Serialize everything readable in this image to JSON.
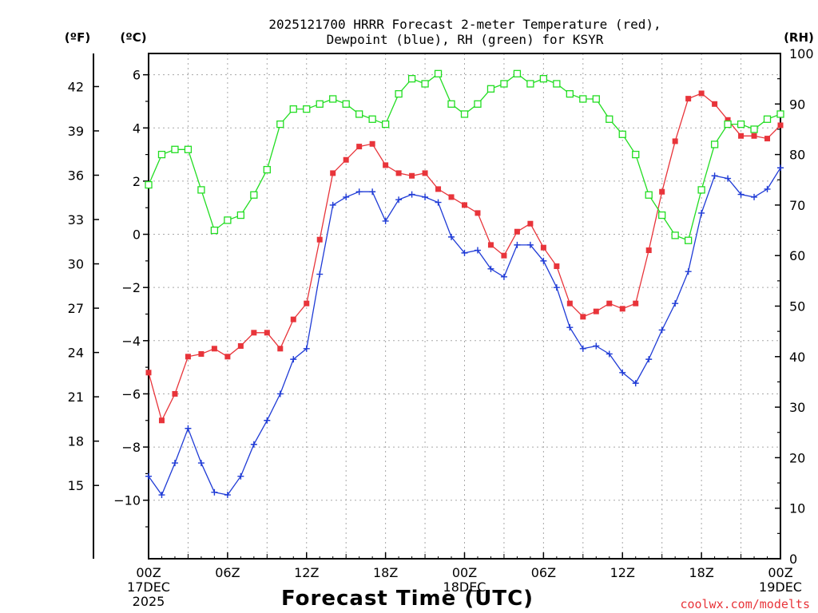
{
  "chart_data": {
    "type": "line",
    "title": [
      "2025121700 HRRR Forecast 2-meter Temperature (red),",
      "Dewpoint (blue), RH (green) for KSYR"
    ],
    "xlabel": "Forecast Time (UTC)",
    "credit": "coolwx.com/modelts",
    "units": {
      "f": "(ºF)",
      "c": "(ºC)",
      "rh": "(RH)"
    },
    "x_ticks": [
      {
        "h": 0,
        "lines": [
          "00Z",
          "17DEC",
          "2025"
        ]
      },
      {
        "h": 6,
        "lines": [
          "06Z"
        ]
      },
      {
        "h": 12,
        "lines": [
          "12Z"
        ]
      },
      {
        "h": 18,
        "lines": [
          "18Z"
        ]
      },
      {
        "h": 24,
        "lines": [
          "00Z",
          "18DEC"
        ]
      },
      {
        "h": 30,
        "lines": [
          "06Z"
        ]
      },
      {
        "h": 36,
        "lines": [
          "12Z"
        ]
      },
      {
        "h": 42,
        "lines": [
          "18Z"
        ]
      },
      {
        "h": 48,
        "lines": [
          "00Z",
          "19DEC"
        ]
      }
    ],
    "xlim": [
      0,
      48
    ],
    "ylim_c": [
      -12.2,
      6.8
    ],
    "ylim_rh": [
      0,
      100
    ],
    "y_ticks_c": [
      "6",
      "4",
      "2",
      "0",
      "−2",
      "−4",
      "−6",
      "−8",
      "−10"
    ],
    "y_ticks_f": [
      "42",
      "39",
      "36",
      "33",
      "30",
      "27",
      "24",
      "21",
      "18",
      "15"
    ],
    "y_ticks_rh": [
      "100",
      "90",
      "80",
      "70",
      "60",
      "50",
      "40",
      "30",
      "20",
      "10",
      "0"
    ],
    "grid": true,
    "hours": [
      0,
      1,
      2,
      3,
      4,
      5,
      6,
      7,
      8,
      9,
      10,
      11,
      12,
      13,
      14,
      15,
      16,
      17,
      18,
      19,
      20,
      21,
      22,
      23,
      24,
      25,
      26,
      27,
      28,
      29,
      30,
      31,
      32,
      33,
      34,
      35,
      36,
      37,
      38,
      39,
      40,
      41,
      42,
      43,
      44,
      45,
      46,
      47,
      48
    ],
    "series": [
      {
        "name": "Temperature",
        "unit": "C",
        "color": "#e8343a",
        "marker": "filled-square",
        "values": [
          -5.2,
          -7.0,
          -6.0,
          -4.6,
          -4.5,
          -4.3,
          -4.6,
          -4.2,
          -3.7,
          -3.7,
          -4.3,
          -3.2,
          -2.6,
          -0.2,
          2.3,
          2.8,
          3.3,
          3.4,
          2.6,
          2.3,
          2.2,
          2.3,
          1.7,
          1.4,
          1.1,
          0.8,
          -0.4,
          -0.8,
          0.1,
          0.4,
          -0.5,
          -1.2,
          -2.6,
          -3.1,
          -2.9,
          -2.6,
          -2.8,
          -2.6,
          -0.6,
          1.6,
          3.5,
          5.1,
          5.3,
          4.9,
          4.3,
          3.7,
          3.7,
          3.6,
          4.1
        ]
      },
      {
        "name": "Dewpoint",
        "unit": "C",
        "color": "#1f3bd6",
        "marker": "plus",
        "values": [
          -9.1,
          -9.8,
          -8.6,
          -7.3,
          -8.6,
          -9.7,
          -9.8,
          -9.1,
          -7.9,
          -7.0,
          -6.0,
          -4.7,
          -4.3,
          -1.5,
          1.1,
          1.4,
          1.6,
          1.6,
          0.5,
          1.3,
          1.5,
          1.4,
          1.2,
          -0.1,
          -0.7,
          -0.6,
          -1.3,
          -1.6,
          -0.4,
          -0.4,
          -1.0,
          -2.0,
          -3.5,
          -4.3,
          -4.2,
          -4.5,
          -5.2,
          -5.6,
          -4.7,
          -3.6,
          -2.6,
          -1.4,
          0.8,
          2.2,
          2.1,
          1.5,
          1.4,
          1.7,
          2.5
        ]
      },
      {
        "name": "RH",
        "unit": "%",
        "color": "#22dd22",
        "marker": "open-square",
        "values": [
          74,
          80,
          81,
          81,
          73,
          65,
          67,
          68,
          72,
          77,
          86,
          89,
          89,
          90,
          91,
          90,
          88,
          87,
          86,
          92,
          95,
          94,
          96,
          90,
          88,
          90,
          93,
          94,
          96,
          94,
          95,
          94,
          92,
          91,
          91,
          87,
          84,
          80,
          72,
          68,
          64,
          63,
          73,
          82,
          86,
          86,
          85,
          87,
          88
        ]
      }
    ]
  }
}
